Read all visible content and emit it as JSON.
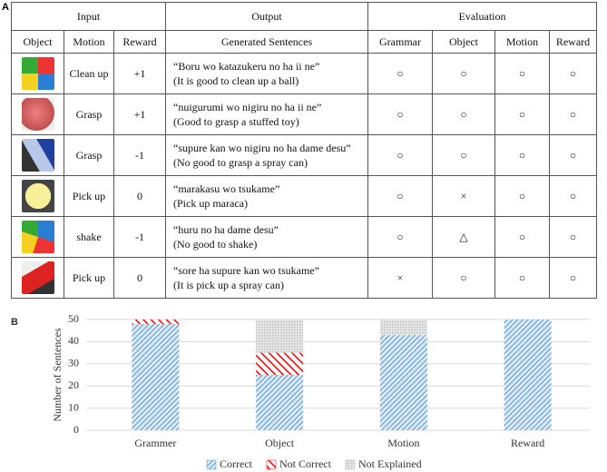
{
  "panel_a": {
    "label": "A",
    "table": {
      "header_groups": [
        "Input",
        "Output",
        "Evaluation"
      ],
      "columns": [
        "Object",
        "Motion",
        "Reward",
        "Generated Sentences",
        "Grammar",
        "Object",
        "Motion",
        "Reward"
      ],
      "rows": [
        {
          "motion": "Clean up",
          "reward": "+1",
          "sentence": [
            "“Boru wo katazukeru no ha ii ne”",
            "(It is good to clean up a ball)"
          ],
          "evaluation": [
            "○",
            "○",
            "○",
            "○"
          ]
        },
        {
          "motion": "Grasp",
          "reward": "+1",
          "sentence": [
            "“nuigurumi wo nigiru no ha ii ne”",
            "(Good to grasp a stuffed toy)"
          ],
          "evaluation": [
            "○",
            "○",
            "○",
            "○"
          ]
        },
        {
          "motion": "Grasp",
          "reward": "-1",
          "sentence": [
            "“supure kan wo nigiru no ha dame desu”",
            "(No good to grasp a spray can)"
          ],
          "evaluation": [
            "○",
            "○",
            "○",
            "○"
          ]
        },
        {
          "motion": "Pick up",
          "reward": "0",
          "sentence": [
            "“marakasu wo tsukame”",
            "(Pick up maraca)"
          ],
          "evaluation": [
            "○",
            "×",
            "○",
            "○"
          ]
        },
        {
          "motion": "shake",
          "reward": "-1",
          "sentence": [
            "“huru no ha dame desu”",
            "(No good to shake)"
          ],
          "evaluation": [
            "○",
            "△",
            "○",
            "○"
          ]
        },
        {
          "motion": "Pick up",
          "reward": "0",
          "sentence": [
            "“sore ha supure kan wo tsukame”",
            "(It is pick up a spray can)"
          ],
          "evaluation": [
            "×",
            "○",
            "○",
            "○"
          ]
        }
      ]
    }
  },
  "chart_data": {
    "type": "stacked_bar",
    "panel_label": "B",
    "ylabel": "Number of Sentences",
    "categories": [
      "Grammer",
      "Object",
      "Motion",
      "Reward"
    ],
    "series": [
      {
        "name": "Correct",
        "color": "#5b9bd5",
        "values": [
          48,
          25,
          43,
          50
        ]
      },
      {
        "name": "Not Correct",
        "color": "#ff0000",
        "values": [
          2,
          10,
          0,
          0
        ]
      },
      {
        "name": "Not Explained",
        "color": "#bfbfbf",
        "values": [
          0,
          15,
          7,
          0
        ]
      }
    ],
    "ylim": [
      0,
      50
    ],
    "yticks": [
      0,
      10,
      20,
      30,
      40,
      50
    ],
    "grid": true,
    "legend": "bottom"
  }
}
